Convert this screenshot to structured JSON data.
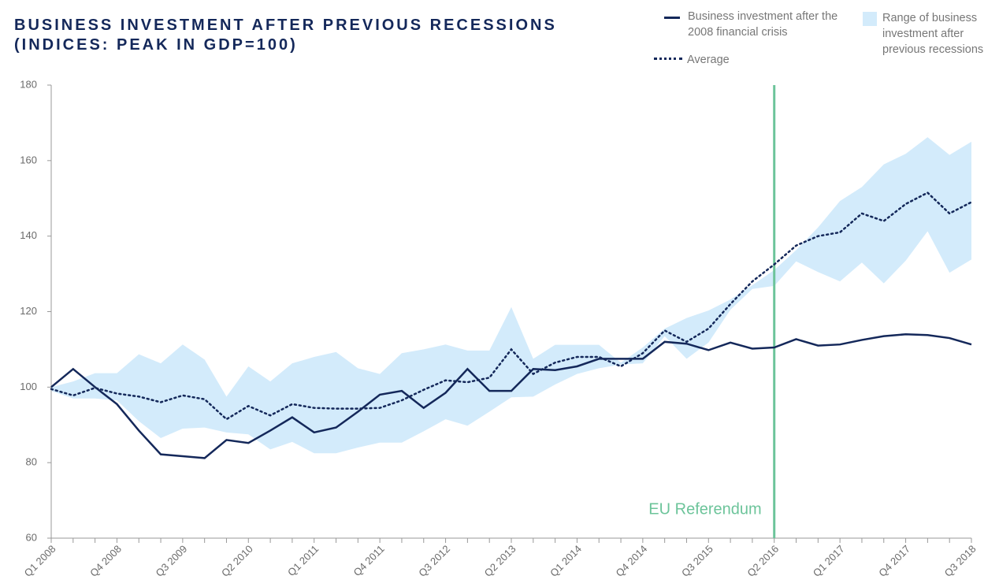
{
  "chart_data": {
    "type": "line",
    "title": "BUSINESS INVESTMENT AFTER PREVIOUS RECESSIONS",
    "subtitle": "(INDICES: PEAK IN GDP=100)",
    "categories": [
      "Q1 2008",
      null,
      null,
      "Q4 2008",
      null,
      null,
      "Q3 2009",
      null,
      null,
      "Q2 2010",
      null,
      null,
      "Q1 2011",
      null,
      null,
      "Q4 2011",
      null,
      null,
      "Q3 2012",
      null,
      null,
      "Q2 2013",
      null,
      null,
      "Q1 2014",
      null,
      null,
      "Q4 2014",
      null,
      null,
      "Q3 2015",
      null,
      null,
      "Q2 2016",
      null,
      null,
      "Q1 2017",
      null,
      null,
      "Q4 2017",
      null,
      null,
      "Q3 2018"
    ],
    "series": [
      {
        "name": "Business investment after the 2008 financial crisis",
        "color": "#14285a",
        "style": "solid",
        "values": [
          100,
          104.8,
          100,
          95.5,
          88.5,
          82.2,
          81.7,
          81.2,
          86,
          85.2,
          88.5,
          92,
          88,
          89.3,
          93.5,
          98,
          99,
          94.5,
          98.5,
          104.8,
          99,
          99,
          104.8,
          104.5,
          105.5,
          107.5,
          107.5,
          107.5,
          112,
          111.5,
          109.8,
          111.8,
          110.2,
          110.5,
          112.7,
          111,
          111.3,
          112.5,
          113.5,
          114,
          113.8,
          113,
          111.3
        ]
      },
      {
        "name": "Average",
        "color": "#14285a",
        "style": "dotted",
        "values": [
          99.5,
          97.8,
          99.8,
          98.3,
          97.5,
          96,
          97.8,
          96.8,
          91.5,
          95,
          92.5,
          95.5,
          94.5,
          94.3,
          94.3,
          94.5,
          96.5,
          99.3,
          101.8,
          101.3,
          102.5,
          110,
          103.5,
          106.5,
          108,
          108,
          105.5,
          109,
          115,
          112,
          115.5,
          122,
          128,
          132.5,
          137.5,
          140,
          141,
          146,
          144,
          148.5,
          151.5,
          146,
          149
        ]
      },
      {
        "name": "Range of business investment after previous recessions",
        "color": "#d3ebfb",
        "style": "area",
        "upper": [
          100,
          101.5,
          103.7,
          103.7,
          108.7,
          106.3,
          111.3,
          107.3,
          97.5,
          105.5,
          101.5,
          106.3,
          108,
          109.3,
          105,
          103.5,
          109,
          110,
          111.3,
          109.7,
          109.7,
          121.2,
          107.5,
          111.2,
          111.2,
          111.2,
          106.5,
          110.5,
          115.5,
          118.3,
          120.3,
          123.2,
          127,
          131,
          136.3,
          142.3,
          149.3,
          153,
          159,
          161.8,
          166.2,
          161.5,
          165
        ],
        "lower": [
          99,
          97,
          97,
          96.5,
          91,
          86.5,
          89,
          89.3,
          88,
          87.5,
          83.5,
          85.5,
          82.5,
          82.5,
          84,
          85.3,
          85.3,
          88.3,
          91.5,
          89.8,
          93.5,
          97.3,
          97.5,
          100.7,
          103.5,
          105,
          106,
          106.3,
          113.5,
          107.5,
          111.8,
          120.5,
          126,
          126.8,
          133.3,
          130.5,
          128,
          133,
          127.5,
          133.5,
          141.3,
          130.3,
          133.8
        ]
      }
    ],
    "ylim": [
      60,
      180
    ],
    "yticks": [
      60,
      80,
      100,
      120,
      140,
      160,
      180
    ],
    "annotation": {
      "label": "EU Referendum",
      "category": "Q2 2016",
      "color": "#6cc49a"
    }
  }
}
